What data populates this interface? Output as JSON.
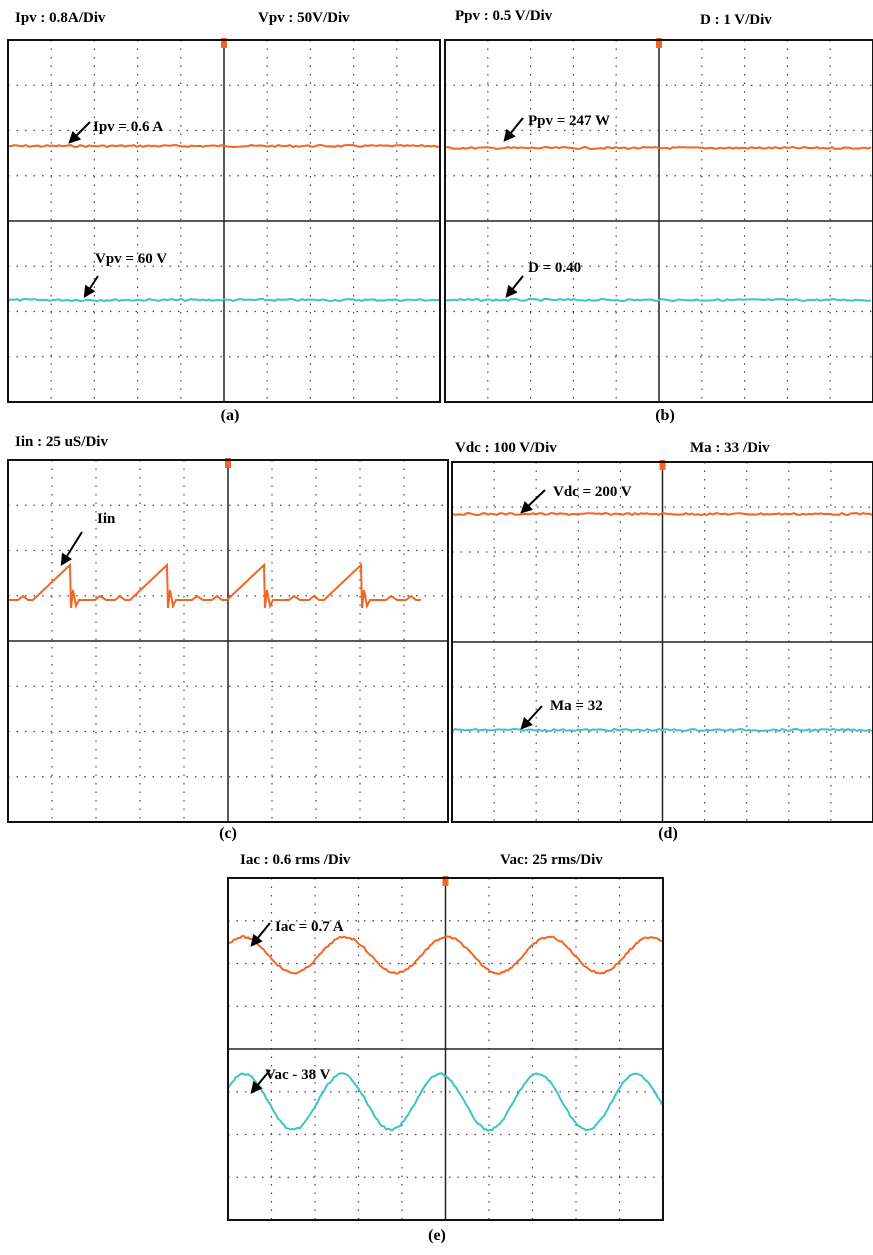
{
  "panels": [
    {
      "header": [
        "Ipv : 0.8A/Div",
        "Vpv : 50V/Div"
      ],
      "annotations": [
        "Ipv = 0.6 A",
        "Vpv = 60 V"
      ],
      "caption": "(a)"
    },
    {
      "header": [
        "Ppv : 0.5 V/Div",
        "D : 1 V/Div"
      ],
      "annotations": [
        "Ppv = 247 W",
        "D = 0.40"
      ],
      "caption": "(b)"
    },
    {
      "header": [
        "Iin : 25 uS/Div"
      ],
      "annotations": [
        "Iin"
      ],
      "caption": "(c)"
    },
    {
      "header": [
        "Vdc : 100 V/Div",
        "Ma : 33 /Div"
      ],
      "annotations": [
        "Vdc = 200 V",
        "Ma = 32"
      ],
      "caption": "(d)"
    },
    {
      "header": [
        "Iac : 0.6 rms /Div",
        "Vac: 25 rms/Div"
      ],
      "annotations": [
        "Iac = 0.7 A",
        "Vac - 38 V"
      ],
      "caption": "(e)"
    }
  ]
}
